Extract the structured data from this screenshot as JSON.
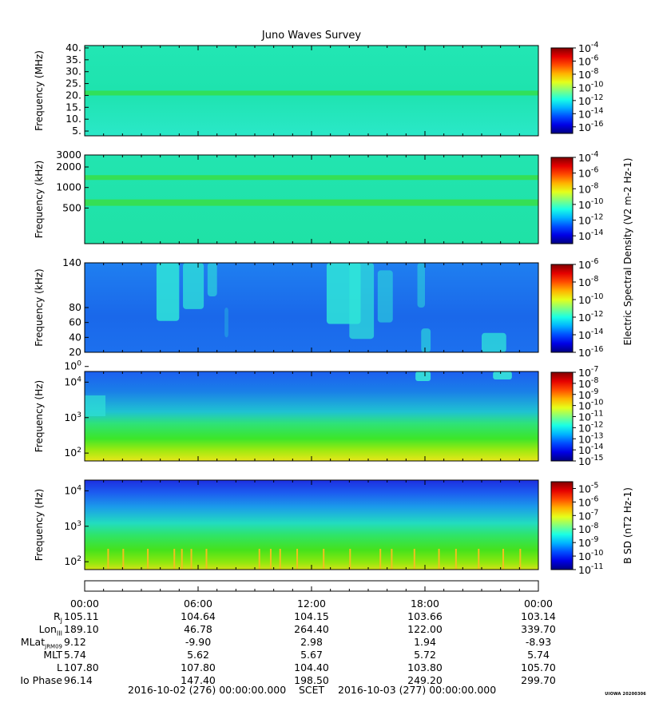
{
  "chart_data": [
    {
      "type": "heatmap",
      "title": "Juno Waves Survey",
      "ylabel": "Frequency (MHz)",
      "yscale": "linear",
      "ylim": [
        3,
        41
      ],
      "yticks": [
        "5.",
        "10.",
        "15.",
        "20.",
        "25.",
        "30.",
        "35.",
        "40."
      ],
      "colorbar": {
        "labels": [
          "10-16",
          "10-14",
          "10-12",
          "10-10",
          "10-8",
          "10-6",
          "10-4"
        ],
        "range_exp": [
          -17,
          -4
        ]
      },
      "features": [
        "uniform background ~1e-12",
        "narrow band at 21 MHz"
      ]
    },
    {
      "type": "heatmap",
      "ylabel": "Frequency (kHz)",
      "yscale": "log",
      "ylim": [
        150,
        3000
      ],
      "yticks": [
        "500",
        "1000",
        "2000",
        "3000"
      ],
      "colorbar": {
        "labels": [
          "10-14",
          "10-12",
          "10-10",
          "10-8",
          "10-6",
          "10-4"
        ],
        "range_exp": [
          -15,
          -4
        ],
        "label": "Electric Spectral Density (V2 m-2 Hz-1)"
      },
      "features": [
        "bands at 600 kHz and 1400 kHz"
      ]
    },
    {
      "type": "heatmap",
      "ylabel": "Frequency (kHz)",
      "yscale": "linear",
      "ylim": [
        20,
        140
      ],
      "yticks": [
        "20",
        "40",
        "60",
        "80",
        "100",
        "140"
      ],
      "colorbar": {
        "labels": [
          "10-16",
          "10-14",
          "10-12",
          "10-10",
          "10-8",
          "10-6"
        ],
        "range_exp": [
          -16,
          -6
        ]
      },
      "features": [
        "emission bursts near 04:00-07:00",
        "emission bursts near 13:00-16:00",
        "burst near 21:00"
      ]
    },
    {
      "type": "heatmap",
      "ylabel": "Frequency (Hz)",
      "yscale": "log",
      "ylim": [
        60,
        20000
      ],
      "yticks": [
        "102",
        "103",
        "104"
      ],
      "colorbar": {
        "labels": [
          "10-15",
          "10-14",
          "10-13",
          "10-12",
          "10-11",
          "10-10",
          "10-9",
          "10-8",
          "10-7"
        ],
        "range_exp": [
          -15,
          -7
        ]
      }
    },
    {
      "type": "heatmap",
      "ylabel": "Frequency (Hz)",
      "yscale": "log",
      "ylim": [
        60,
        20000
      ],
      "yticks": [
        "102",
        "103",
        "104"
      ],
      "colorbar": {
        "labels": [
          "10-11",
          "10-10",
          "10-9",
          "10-8",
          "10-7",
          "10-6",
          "10-5"
        ],
        "range_exp": [
          -11,
          -4.5
        ],
        "label": "B SD (nT2 Hz-1)"
      }
    }
  ],
  "time_axis": [
    "00:00",
    "06:00",
    "12:00",
    "18:00",
    "00:00"
  ],
  "ephemeris": [
    {
      "label": "Rj",
      "values": [
        "105.11",
        "104.64",
        "104.15",
        "103.66",
        "103.14"
      ]
    },
    {
      "label": "LonIII",
      "values": [
        "189.10",
        "46.78",
        "264.40",
        "122.00",
        "339.70"
      ]
    },
    {
      "label": "MLatJRM09",
      "values": [
        "9.12",
        "-9.90",
        "2.98",
        "1.94",
        "-8.93"
      ]
    },
    {
      "label": "MLT",
      "values": [
        "5.74",
        "5.62",
        "5.67",
        "5.72",
        "5.74"
      ]
    },
    {
      "label": "L",
      "values": [
        "107.80",
        "107.80",
        "104.40",
        "103.80",
        "105.70"
      ]
    },
    {
      "label": "Io Phase",
      "values": [
        "96.14",
        "147.40",
        "198.50",
        "249.20",
        "299.70"
      ]
    }
  ],
  "footer": {
    "start": "2016-10-02 (276) 00:00:00.000",
    "scet": "SCET",
    "end": "2016-10-03 (277) 00:00:00.000"
  },
  "stamp": "UIOWA 20200306"
}
